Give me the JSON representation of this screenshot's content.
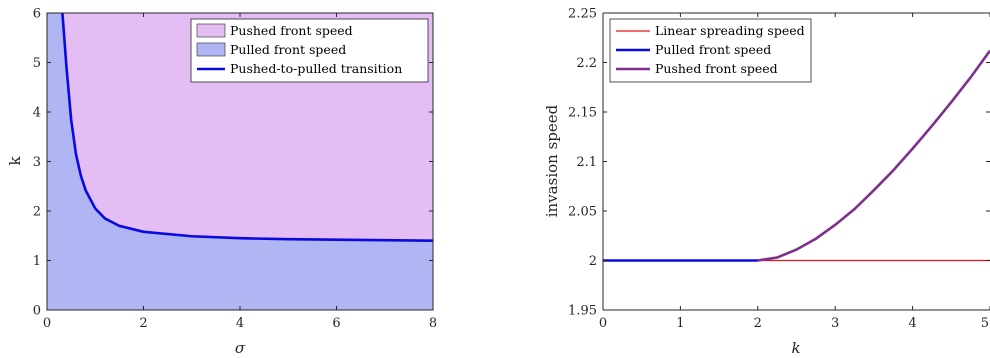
{
  "chart_data": [
    {
      "type": "area",
      "xlabel": "σ",
      "ylabel": "k",
      "xlim": [
        0,
        8
      ],
      "ylim": [
        0,
        6
      ],
      "xticks": [
        0,
        2,
        4,
        6,
        8
      ],
      "yticks": [
        0,
        1,
        2,
        3,
        4,
        5,
        6
      ],
      "grid": false,
      "legend_position": "top-right",
      "legend": [
        "Pushed front speed",
        "Pulled front speed",
        "Pushed-to-pulled transition"
      ],
      "colors": {
        "pushed": "#e4bdf5",
        "pulled": "#b0b5f3",
        "transition": "#0a0adf"
      },
      "transition_curve": {
        "sigma": [
          0.32,
          0.4,
          0.5,
          0.6,
          0.7,
          0.8,
          1.0,
          1.2,
          1.5,
          2.0,
          3.0,
          4.0,
          5.0,
          6.0,
          7.0,
          8.0
        ],
        "k": [
          6.0,
          4.95,
          3.85,
          3.15,
          2.72,
          2.42,
          2.05,
          1.85,
          1.7,
          1.58,
          1.49,
          1.45,
          1.43,
          1.42,
          1.41,
          1.4
        ]
      }
    },
    {
      "type": "line",
      "xlabel": "k",
      "ylabel": "invasion speed",
      "xlim": [
        0,
        5
      ],
      "ylim": [
        1.95,
        2.25
      ],
      "xticks": [
        "0",
        "1",
        "2",
        "3",
        "4",
        "5"
      ],
      "yticks": [
        "1.95",
        "2",
        "2.05",
        "2.1",
        "2.15",
        "2.2",
        "2.25"
      ],
      "grid": false,
      "legend_position": "top-left",
      "series": [
        {
          "name": "Linear spreading speed",
          "color": "#e8151b",
          "x": [
            0,
            5
          ],
          "y": [
            2.0,
            2.0
          ]
        },
        {
          "name": "Pulled front speed",
          "color": "#0a0adf",
          "x": [
            0,
            2
          ],
          "y": [
            2.0,
            2.0
          ]
        },
        {
          "name": "Pushed front speed",
          "color": "#7e2f8e",
          "x": [
            2.0,
            2.25,
            2.5,
            2.75,
            3.0,
            3.25,
            3.5,
            3.75,
            4.0,
            4.25,
            4.5,
            4.75,
            5.0
          ],
          "y": [
            2.0,
            2.003,
            2.011,
            2.022,
            2.036,
            2.052,
            2.071,
            2.091,
            2.113,
            2.136,
            2.16,
            2.185,
            2.212
          ]
        }
      ]
    }
  ]
}
